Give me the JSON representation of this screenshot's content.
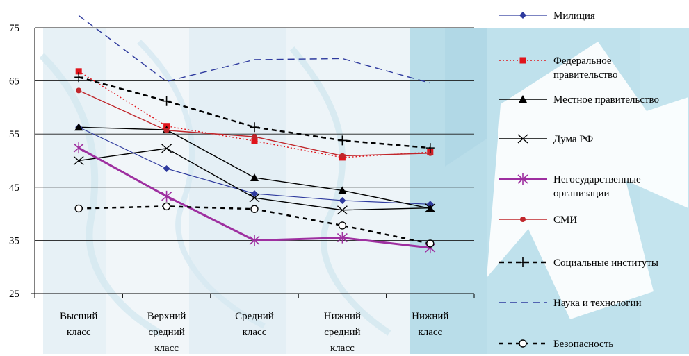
{
  "chart_data": {
    "type": "line",
    "title": "",
    "xlabel": "",
    "ylabel": "",
    "categories": [
      [
        "Высший",
        "класс"
      ],
      [
        "Верхний",
        "средний",
        "класс"
      ],
      [
        "Средний",
        "класс"
      ],
      [
        "Нижний",
        "средний",
        "класс"
      ],
      [
        "Нижний",
        "класс"
      ]
    ],
    "ylim": [
      25,
      75
    ],
    "yticks": [
      25,
      35,
      45,
      55,
      65,
      75
    ],
    "grid": true,
    "legend_position": "right",
    "series": [
      {
        "name": "Милиция",
        "values": [
          56.3,
          48.5,
          43.8,
          42.5,
          41.8
        ],
        "color": "#2e3a9e",
        "dash": "",
        "width": 1.2,
        "marker": "diamond"
      },
      {
        "name": "Федеральное правительство",
        "values": [
          66.8,
          56.5,
          53.7,
          50.6,
          51.6
        ],
        "color": "#e0141b",
        "dash": "2,3",
        "width": 1.4,
        "marker": "square"
      },
      {
        "name": "Местное правительство",
        "values": [
          56.3,
          55.8,
          46.8,
          44.4,
          41.0
        ],
        "color": "#000000",
        "dash": "",
        "width": 1.4,
        "marker": "triangle"
      },
      {
        "name": "Дума РФ",
        "values": [
          50.0,
          52.3,
          43.0,
          40.7,
          41.1
        ],
        "color": "#000000",
        "dash": "",
        "width": 1.4,
        "marker": "x"
      },
      {
        "name": "Негосударственные организации",
        "values": [
          52.4,
          43.3,
          35.0,
          35.5,
          33.6
        ],
        "color": "#9e2fa0",
        "dash": "",
        "width": 3,
        "marker": "asterisk"
      },
      {
        "name": "СМИ",
        "values": [
          63.2,
          55.7,
          54.5,
          50.9,
          51.4
        ],
        "color": "#c0262b",
        "dash": "",
        "width": 1.4,
        "marker": "circle"
      },
      {
        "name": "Социальные институты",
        "values": [
          65.7,
          61.2,
          56.3,
          53.8,
          52.4
        ],
        "color": "#000000",
        "dash": "7,5",
        "width": 2.5,
        "marker": "plus"
      },
      {
        "name": "Наука и технологии",
        "values": [
          77.3,
          64.9,
          69.0,
          69.2,
          64.6
        ],
        "color": "#2e3a9e",
        "dash": "10,6",
        "width": 1.4,
        "marker": "none"
      },
      {
        "name": "Безопасность",
        "values": [
          41.0,
          41.4,
          40.9,
          37.8,
          34.4
        ],
        "color": "#000000",
        "dash": "6,6",
        "width": 2.5,
        "marker": "open-circle"
      }
    ],
    "legend_labels": [
      [
        "Милиция"
      ],
      [
        "Федеральное",
        "правительство"
      ],
      [
        "Местное правительство"
      ],
      [
        "Дума РФ"
      ],
      [
        "Негосударственные",
        "организации"
      ],
      [
        "СМИ"
      ],
      [
        "Социальные институты"
      ],
      [
        "Наука и технологии"
      ],
      [
        "Безопасность"
      ]
    ]
  }
}
